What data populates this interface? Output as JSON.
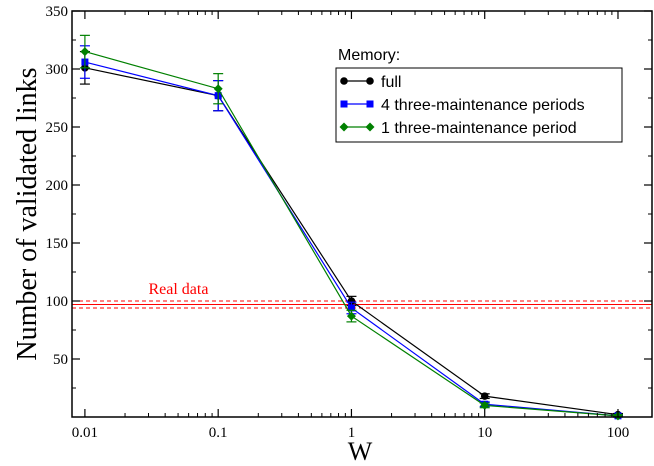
{
  "chart_data": {
    "type": "line",
    "xlabel": "W",
    "ylabel": "Number of validated links",
    "x_scale": "log",
    "xlim": [
      0.008,
      180
    ],
    "ylim": [
      0,
      350
    ],
    "x_ticks": [
      0.01,
      0.1,
      1,
      10,
      100
    ],
    "x_tick_labels": [
      "0.01",
      "0.1",
      "1",
      "10",
      "100"
    ],
    "y_ticks": [
      50,
      100,
      150,
      200,
      250,
      300,
      350
    ],
    "y_tick_labels": [
      "50",
      "100",
      "150",
      "200",
      "250",
      "300",
      "350"
    ],
    "legend_title": "Memory:",
    "legend_position": "top-right",
    "series": [
      {
        "name": "full",
        "color": "#000000",
        "marker": "circle",
        "x": [
          0.01,
          0.1,
          1,
          10,
          100
        ],
        "y": [
          301,
          277,
          100,
          18,
          2
        ],
        "yerr": [
          14,
          13,
          4,
          2,
          1
        ]
      },
      {
        "name": "4 three-maintenance periods",
        "color": "#0000ff",
        "marker": "square",
        "x": [
          0.01,
          0.1,
          1,
          10,
          100
        ],
        "y": [
          306,
          277,
          94,
          11,
          1
        ],
        "yerr": [
          14,
          13,
          5,
          2,
          1
        ]
      },
      {
        "name": "1 three-maintenance period",
        "color": "#008000",
        "marker": "diamond",
        "x": [
          0.01,
          0.1,
          1,
          10,
          100
        ],
        "y": [
          315,
          283,
          87,
          10,
          1
        ],
        "yerr": [
          14,
          13,
          5,
          2,
          1
        ]
      }
    ],
    "reference": {
      "label": "Real data",
      "color": "#ff0000",
      "value": 97,
      "band": [
        94,
        100
      ]
    }
  }
}
